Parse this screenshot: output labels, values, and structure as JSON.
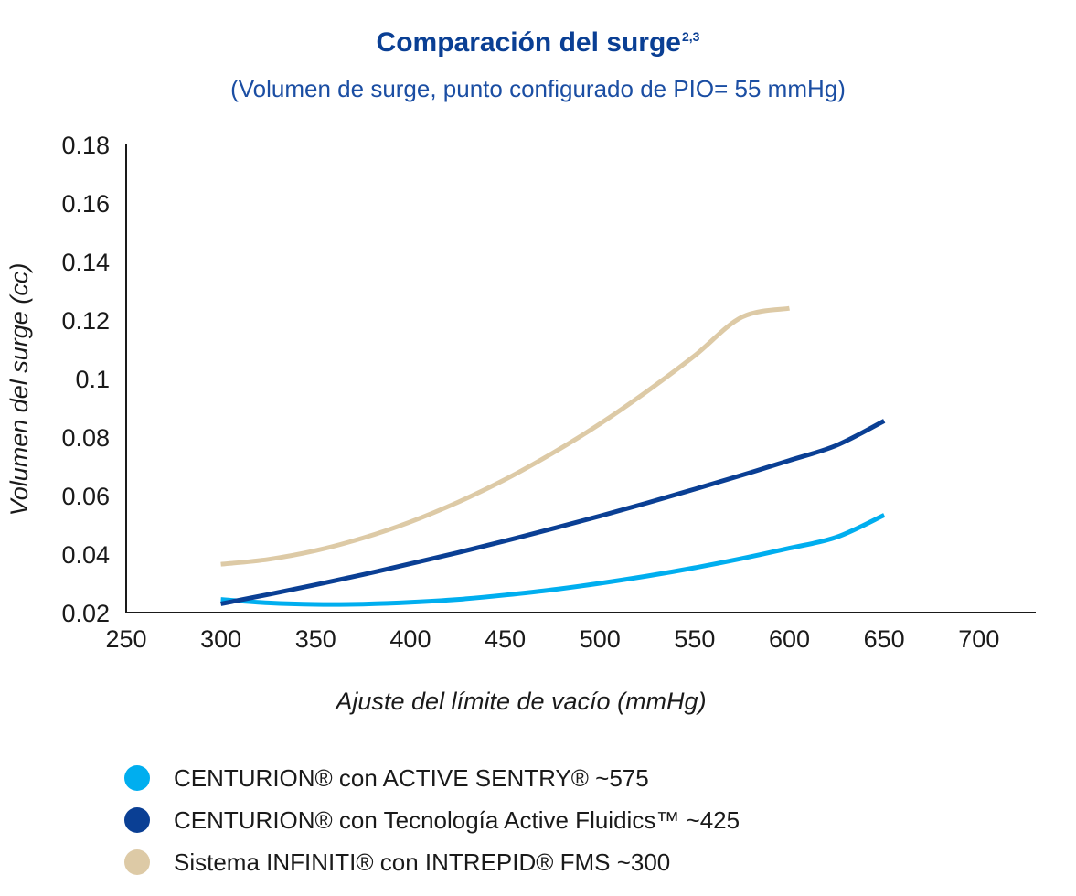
{
  "chart_data": {
    "type": "line",
    "title": "Comparación del surge",
    "title_superscript": "2,3",
    "subtitle": "(Volumen de surge, punto configurado de PIO= 55 mmHg)",
    "xlabel": "Ajuste del límite de vacío (mmHg)",
    "ylabel": "Volumen del surge (cc)",
    "xlim": [
      250,
      730
    ],
    "ylim": [
      0.02,
      0.18
    ],
    "x_ticks": [
      250,
      300,
      350,
      400,
      450,
      500,
      550,
      600,
      650,
      700
    ],
    "y_ticks": [
      0.02,
      0.04,
      0.06,
      0.08,
      0.1,
      0.12,
      0.14,
      0.16,
      0.18
    ],
    "y_tick_labels": [
      "0.02",
      "0.04",
      "0.06",
      "0.08",
      "0.1",
      "0.12",
      "0.14",
      "0.16",
      "0.18"
    ],
    "grid": false,
    "legend_position": "bottom",
    "series": [
      {
        "name": "CENTURION® con ACTIVE SENTRY® ~575",
        "color": "#00aeef",
        "x": [
          300,
          325,
          350,
          375,
          400,
          425,
          450,
          475,
          500,
          525,
          550,
          575,
          600,
          625,
          650
        ],
        "y": [
          0.0245,
          0.0233,
          0.0228,
          0.0229,
          0.0235,
          0.0245,
          0.026,
          0.0278,
          0.03,
          0.0325,
          0.0353,
          0.0385,
          0.042,
          0.0458,
          0.0533
        ]
      },
      {
        "name": "CENTURION® con Tecnología Active Fluidics™ ~425",
        "color": "#0a3f94",
        "x": [
          300,
          325,
          350,
          375,
          400,
          425,
          450,
          475,
          500,
          525,
          550,
          575,
          600,
          625,
          650
        ],
        "y": [
          0.023,
          0.0262,
          0.0295,
          0.033,
          0.0367,
          0.0405,
          0.0445,
          0.0487,
          0.053,
          0.0575,
          0.0622,
          0.067,
          0.072,
          0.0772,
          0.0855
        ]
      },
      {
        "name": "Sistema INFINITI® con INTREPID® FMS ~300",
        "color": "#ddcaa6",
        "x": [
          300,
          325,
          350,
          375,
          400,
          425,
          450,
          475,
          500,
          525,
          550,
          575,
          600
        ],
        "y": [
          0.0365,
          0.0382,
          0.0412,
          0.0455,
          0.051,
          0.0577,
          0.0655,
          0.0745,
          0.0845,
          0.0957,
          0.1078,
          0.121,
          0.124
        ]
      }
    ]
  }
}
